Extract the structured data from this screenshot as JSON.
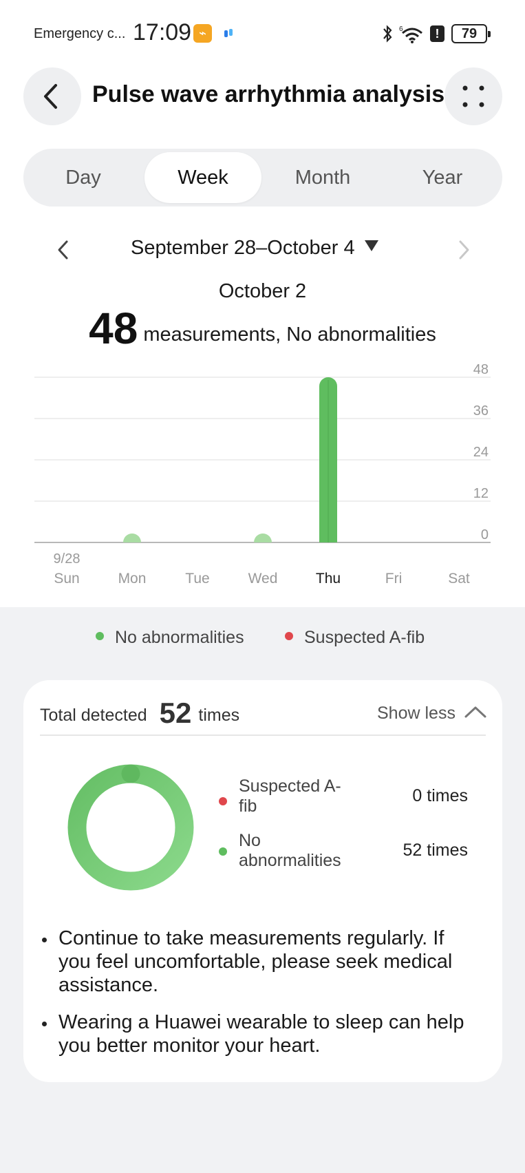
{
  "status_bar": {
    "carrier": "Emergency c...",
    "time": "17:09",
    "battery": "79"
  },
  "header": {
    "title": "Pulse wave arrhythmia analysis",
    "back_icon": "chevron-left-icon",
    "more_icon": "four-dots-icon"
  },
  "tabs": [
    {
      "label": "Day",
      "active": false
    },
    {
      "label": "Week",
      "active": true
    },
    {
      "label": "Month",
      "active": false
    },
    {
      "label": "Year",
      "active": false
    }
  ],
  "date_range": {
    "label": "September 28–October 4",
    "selected_date": "October 2",
    "count": "48",
    "summary": "measurements, No abnormalities"
  },
  "chart_data": {
    "type": "bar",
    "categories": [
      "Sun",
      "Mon",
      "Tue",
      "Wed",
      "Thu",
      "Fri",
      "Sat"
    ],
    "date_tick": "9/28",
    "values": [
      0,
      2,
      0,
      2,
      48,
      0,
      0
    ],
    "selected_index": 4,
    "ylim": [
      0,
      48
    ],
    "yticks": [
      "48",
      "36",
      "24",
      "12",
      "0"
    ],
    "ytick_values": [
      48,
      36,
      24,
      12,
      0
    ],
    "grid": true,
    "colors": {
      "bar": "#5fbd5f",
      "small": "#a9dca3",
      "grid": "#dcdcdc",
      "axis": "#999999"
    }
  },
  "legend": {
    "items": [
      {
        "label": "No abnormalities",
        "color": "#5fbd5f"
      },
      {
        "label": "Suspected A-fib",
        "color": "#e0474c"
      }
    ]
  },
  "summary_card": {
    "total_label": "Total detected",
    "total_count": "52",
    "total_unit": "times",
    "toggle_label": "Show less",
    "breakdown": [
      {
        "label": "Suspected A-fib",
        "value": "0 times",
        "color": "#e0474c"
      },
      {
        "label": "No abnormalities",
        "value": "52 times",
        "color": "#5fbd5f"
      }
    ],
    "tips": [
      "Continue to take measurements regularly. If you feel uncomfortable, please seek medical assistance.",
      "Wearing a Huawei wearable to sleep can help you better monitor your heart."
    ]
  }
}
